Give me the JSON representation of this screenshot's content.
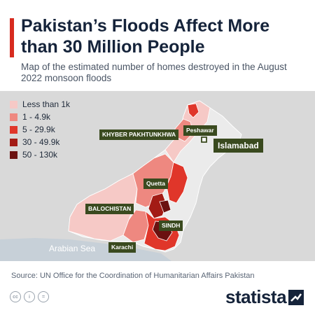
{
  "header": {
    "title": "Pakistan’s Floods Affect More than 30 Million People",
    "subtitle": "Map of the estimated number of homes destroyed in the August 2022 monsoon floods"
  },
  "legend": [
    {
      "label": "Less than 1k",
      "color": "#f6c9c6"
    },
    {
      "label": "1 - 4.9k",
      "color": "#ee8880"
    },
    {
      "label": "5 - 29.9k",
      "color": "#e0362a"
    },
    {
      "label": "30 - 49.9k",
      "color": "#a31b15"
    },
    {
      "label": "50 - 130k",
      "color": "#6b1110"
    }
  ],
  "map": {
    "region_labels": {
      "kp": "KHYBER PAKHTUNKHWA",
      "peshawar": "Peshawar",
      "islamabad": "Islamabad",
      "quetta": "Quetta",
      "balochistan": "BALOCHISTAN",
      "sindh": "SINDH",
      "karachi": "Karachi"
    },
    "sea_label": "Arabian Sea",
    "colors": {
      "land_neighbors": "#d9d9d9",
      "pakistan_base": "#ebebeb",
      "sea": "#c7d0d8"
    }
  },
  "footer": {
    "source": "Source: UN Office for the Coordination of Humanitarian Affairs Pakistan",
    "license_icons": [
      "cc-icon",
      "by-icon",
      "nd-icon"
    ],
    "brand": "statista"
  }
}
